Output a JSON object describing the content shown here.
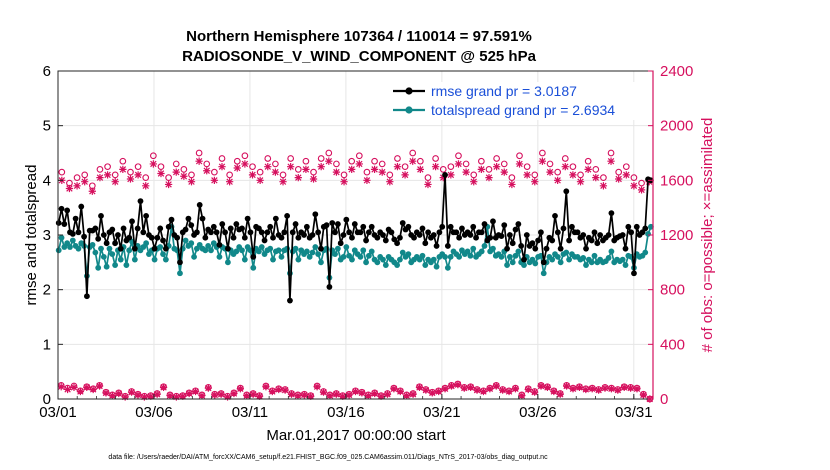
{
  "chart_data": {
    "type": "line",
    "title_line1": "Northern Hemisphere 107364 / 110014 = 97.591%",
    "title_line2": "RADIOSONDE_V_WIND_COMPONENT @ 525 hPa",
    "xlabel": "Mar.01,2017 00:00:00 start",
    "ylabel_left": "rmse and totalspread",
    "ylabel_right": "# of obs: o=possible; ×=assimilated",
    "footer": "data file: /Users/raeder/DAI/ATM_forcXX/CAM6_setup/f.e21.FHIST_BGC.f09_025.CAM6assim.011/Diags_NTrS_2017-03/obs_diag_output.nc",
    "xlim": [
      0,
      31
    ],
    "ylim_left": [
      0,
      6
    ],
    "ylim_right": [
      0,
      2400
    ],
    "x_ticks": [
      0,
      5,
      10,
      15,
      20,
      25,
      30
    ],
    "x_tick_labels": [
      "03/01",
      "03/06",
      "03/11",
      "03/16",
      "03/21",
      "03/26",
      "03/31"
    ],
    "y_ticks_left": [
      "0",
      "1",
      "2",
      "3",
      "4",
      "5",
      "6"
    ],
    "y_ticks_right": [
      "0",
      "400",
      "800",
      "1200",
      "1600",
      "2000",
      "2400"
    ],
    "colors": {
      "rmse": "#000000",
      "spread": "#11888a",
      "obs": "#d6105e",
      "grid": "#e6e6e6"
    },
    "series": [
      {
        "name": "rmse",
        "legend": "rmse grand pr = 3.0187",
        "axis": "left",
        "values": [
          3.22,
          3.48,
          3.2,
          3.45,
          3.05,
          3.02,
          3.3,
          3.05,
          3.52,
          2.97,
          1.88,
          3.08,
          3.08,
          3.12,
          2.93,
          3.35,
          3.0,
          2.85,
          3.05,
          3.1,
          2.85,
          3.0,
          2.75,
          3.12,
          2.9,
          2.95,
          3.25,
          2.75,
          3.12,
          3.62,
          3.05,
          3.35,
          3.0,
          2.95,
          2.75,
          2.95,
          3.12,
          2.9,
          2.75,
          3.15,
          3.28,
          3.0,
          2.95,
          2.5,
          3.05,
          3.1,
          3.3,
          3.18,
          3.0,
          3.05,
          3.55,
          3.3,
          2.95,
          3.1,
          3.05,
          3.15,
          3.05,
          2.82,
          3.2,
          3.05,
          2.75,
          3.12,
          2.95,
          3.2,
          3.1,
          3.12,
          2.95,
          3.3,
          3.05,
          2.6,
          3.15,
          3.12,
          3.05,
          2.9,
          3.05,
          3.15,
          2.95,
          3.3,
          3.0,
          2.95,
          3.05,
          3.35,
          1.8,
          3.05,
          3.2,
          2.95,
          3.05,
          3.0,
          3.15,
          2.95,
          3.0,
          3.38,
          3.05,
          2.75,
          3.15,
          3.18,
          2.05,
          3.22,
          3.05,
          3.2,
          2.85,
          3.0,
          3.28,
          3.05,
          2.95,
          3.2,
          3.05,
          3.05,
          3.15,
          2.9,
          3.05,
          3.15,
          3.0,
          2.95,
          3.05,
          3.0,
          2.9,
          3.1,
          3.05,
          2.92,
          2.85,
          2.95,
          3.22,
          3.1,
          3.15,
          3.0,
          2.95,
          3.05,
          3.0,
          3.12,
          2.85,
          3.05,
          2.95,
          3.0,
          2.8,
          3.05,
          3.15,
          4.1,
          2.8,
          3.15,
          3.05,
          3.05,
          2.95,
          3.12,
          3.0,
          3.05,
          3.0,
          3.15,
          2.95,
          3.05,
          3.05,
          3.2,
          2.9,
          2.95,
          3.25,
          2.95,
          3.0,
          2.98,
          3.18,
          2.75,
          3.0,
          2.85,
          3.1,
          3.2,
          2.8,
          2.55,
          3.0,
          2.8,
          2.85,
          2.75,
          2.9,
          3.05,
          2.5,
          2.75,
          2.95,
          2.9,
          3.35,
          3.05,
          2.75,
          3.12,
          3.8,
          2.9,
          3.15,
          3.05,
          3.05,
          2.95,
          3.0,
          2.75,
          2.95,
          2.9,
          3.05,
          2.85,
          3.0,
          2.9,
          2.95,
          3.0,
          3.4,
          2.9,
          2.95,
          2.98,
          3.0,
          2.75,
          3.15,
          3.05,
          2.3,
          3.15,
          3.0,
          3.05,
          3.12,
          4.02,
          4.0
        ]
      },
      {
        "name": "totalspread",
        "legend": "totalspread grand pr = 2.6934",
        "axis": "left",
        "values": [
          2.72,
          2.95,
          2.78,
          2.85,
          2.78,
          2.9,
          2.8,
          2.75,
          2.85,
          2.8,
          2.25,
          2.78,
          2.82,
          2.68,
          2.4,
          2.75,
          2.6,
          2.42,
          2.75,
          2.65,
          2.45,
          2.72,
          2.55,
          2.78,
          2.45,
          2.72,
          2.88,
          2.55,
          2.8,
          2.72,
          2.78,
          2.85,
          2.65,
          2.72,
          2.55,
          2.75,
          2.78,
          2.65,
          2.55,
          2.8,
          3.15,
          2.75,
          2.72,
          2.3,
          2.75,
          2.9,
          2.8,
          2.85,
          2.6,
          2.75,
          2.82,
          2.75,
          2.72,
          2.8,
          2.72,
          2.85,
          2.78,
          2.6,
          2.78,
          2.75,
          2.5,
          2.72,
          2.65,
          2.7,
          2.78,
          2.72,
          2.55,
          2.78,
          2.72,
          2.4,
          2.75,
          2.7,
          2.78,
          2.65,
          2.72,
          2.75,
          2.55,
          2.7,
          2.72,
          2.6,
          2.72,
          2.75,
          2.3,
          2.7,
          2.75,
          2.55,
          2.72,
          2.65,
          2.7,
          2.6,
          2.68,
          2.78,
          2.65,
          2.5,
          2.72,
          2.75,
          2.22,
          2.72,
          2.65,
          2.75,
          2.55,
          2.6,
          2.78,
          2.62,
          2.55,
          2.72,
          2.65,
          2.6,
          2.72,
          2.5,
          2.62,
          2.7,
          2.55,
          2.5,
          2.6,
          2.55,
          2.45,
          2.6,
          2.55,
          2.5,
          2.45,
          2.55,
          2.68,
          2.6,
          2.65,
          2.5,
          2.55,
          2.6,
          2.55,
          2.62,
          2.45,
          2.55,
          2.5,
          2.55,
          2.42,
          2.6,
          2.65,
          2.6,
          2.4,
          2.6,
          2.7,
          2.65,
          2.6,
          2.72,
          2.65,
          2.7,
          2.62,
          2.75,
          2.6,
          2.65,
          2.7,
          2.8,
          3.15,
          2.7,
          2.75,
          2.62,
          2.65,
          2.6,
          2.7,
          2.45,
          2.6,
          2.5,
          2.62,
          2.7,
          2.5,
          2.45,
          2.6,
          2.5,
          2.55,
          2.48,
          2.6,
          2.62,
          2.3,
          2.5,
          2.6,
          2.55,
          2.65,
          2.6,
          2.5,
          2.65,
          2.68,
          2.55,
          2.65,
          2.6,
          2.6,
          2.55,
          2.58,
          2.45,
          2.55,
          2.5,
          2.62,
          2.5,
          2.55,
          2.5,
          2.52,
          2.58,
          2.7,
          2.5,
          2.55,
          2.52,
          2.55,
          2.45,
          2.62,
          2.6,
          2.4,
          2.65,
          2.6,
          2.62,
          2.68,
          3.02,
          3.15
        ]
      },
      {
        "name": "obs_possible",
        "axis": "right",
        "marker": "circle",
        "values": [
          1660,
          1580,
          1620,
          1640,
          1560,
          1680,
          1700,
          1640,
          1740,
          1660,
          1700,
          1620,
          1780,
          1700,
          1620,
          1720,
          1680,
          1640,
          1800,
          1720,
          1660,
          1760,
          1640,
          1740,
          1780,
          1700,
          1660,
          1760,
          1720,
          1640,
          1760,
          1680,
          1740,
          1660,
          1760,
          1800,
          1720,
          1640,
          1740,
          1780,
          1660,
          1740,
          1720,
          1640,
          1760,
          1700,
          1800,
          1740,
          1620,
          1760,
          1680,
          1700,
          1780,
          1720,
          1640,
          1740,
          1680,
          1760,
          1720,
          1620,
          1780,
          1700,
          1640,
          1800,
          1720,
          1660,
          1760,
          1700,
          1640,
          1740,
          1680,
          1620,
          1800,
          1660,
          1700,
          1620,
          1580,
          1600
        ],
        "assimilated": [
          1600,
          1540,
          1560,
          1590,
          1520,
          1620,
          1640,
          1590,
          1680,
          1610,
          1640,
          1560,
          1720,
          1650,
          1570,
          1660,
          1630,
          1590,
          1740,
          1670,
          1600,
          1700,
          1590,
          1690,
          1720,
          1640,
          1600,
          1700,
          1660,
          1590,
          1700,
          1620,
          1680,
          1610,
          1700,
          1740,
          1660,
          1590,
          1680,
          1720,
          1600,
          1680,
          1660,
          1590,
          1700,
          1640,
          1740,
          1680,
          1570,
          1700,
          1620,
          1640,
          1720,
          1660,
          1590,
          1680,
          1620,
          1700,
          1660,
          1570,
          1720,
          1640,
          1590,
          1740,
          1660,
          1600,
          1700,
          1640,
          1590,
          1680,
          1620,
          1560,
          1740,
          1610,
          1640,
          1560,
          1530,
          1590
        ]
      },
      {
        "name": "obs_low",
        "axis": "right",
        "marker": "circle",
        "values": [
          100,
          80,
          95,
          60,
          90,
          75,
          100,
          50,
          30,
          45,
          20,
          55,
          35,
          20,
          25,
          40,
          90,
          30,
          20,
          25,
          45,
          60,
          30,
          85,
          35,
          40,
          20,
          45,
          80,
          30,
          40,
          25,
          95,
          60,
          75,
          70,
          40,
          30,
          35,
          25,
          95,
          55,
          30,
          40,
          25,
          35,
          60,
          50,
          30,
          45,
          25,
          40,
          80,
          60,
          30,
          40,
          90,
          70,
          50,
          60,
          80,
          100,
          110,
          85,
          90,
          70,
          60,
          80,
          100,
          70,
          60,
          80,
          30,
          75,
          55,
          100,
          90,
          60,
          40,
          100,
          80,
          90,
          75,
          80,
          70,
          85,
          80,
          70,
          90,
          85,
          80,
          35,
          0
        ],
        "assimilated": [
          90,
          70,
          85,
          55,
          85,
          70,
          95,
          45,
          25,
          40,
          15,
          50,
          30,
          15,
          20,
          35,
          85,
          25,
          15,
          20,
          40,
          55,
          25,
          80,
          30,
          35,
          15,
          40,
          75,
          25,
          35,
          20,
          90,
          55,
          70,
          65,
          35,
          25,
          30,
          20,
          90,
          50,
          25,
          35,
          20,
          30,
          55,
          45,
          25,
          40,
          20,
          35,
          75,
          55,
          25,
          35,
          85,
          65,
          45,
          55,
          75,
          95,
          105,
          80,
          85,
          65,
          55,
          75,
          95,
          65,
          55,
          75,
          25,
          70,
          50,
          95,
          85,
          55,
          35,
          95,
          75,
          85,
          70,
          75,
          65,
          80,
          75,
          65,
          85,
          80,
          75,
          30,
          0
        ]
      }
    ]
  }
}
